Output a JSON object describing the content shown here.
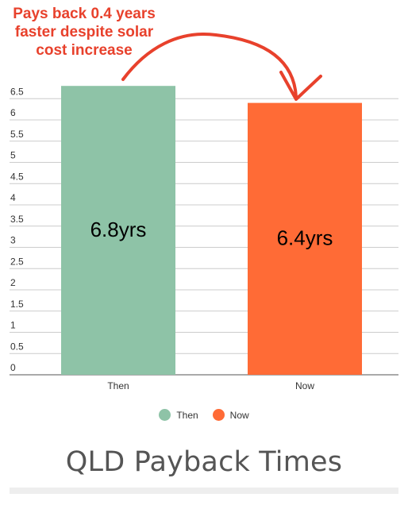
{
  "chart_data": {
    "type": "bar",
    "categories": [
      "Then",
      "Now"
    ],
    "values": [
      6.8,
      6.4
    ],
    "data_labels": [
      "6.8yrs",
      "6.4yrs"
    ],
    "colors": [
      "#8ec3a7",
      "#ff6b36"
    ],
    "ylim": [
      0,
      6.5
    ],
    "yticks": [
      "0",
      "0.5",
      "1",
      "1.5",
      "2",
      "2.5",
      "3",
      "3.5",
      "4",
      "4.5",
      "5",
      "5.5",
      "6",
      "6.5"
    ],
    "grid": true,
    "legend_position": "bottom",
    "legend": [
      {
        "name": "Then",
        "color": "#8ec3a7"
      },
      {
        "name": "Now",
        "color": "#ff6b36"
      }
    ],
    "title": "QLD Payback Times",
    "annotation": [
      "Pays back 0.4 years",
      "faster despite solar",
      "cost increase"
    ],
    "annotation_color": "#e8412c"
  }
}
